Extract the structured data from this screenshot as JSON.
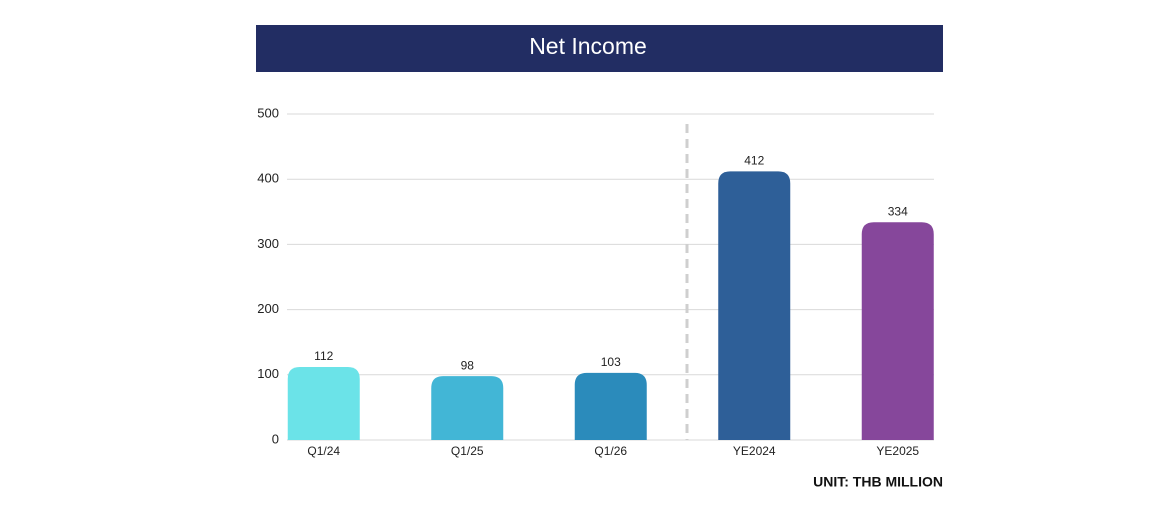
{
  "chart_data": {
    "type": "bar",
    "title": "Net Income",
    "categories": [
      "Q1/24",
      "Q1/25",
      "Q1/26",
      "YE2024",
      "YE2025"
    ],
    "values": [
      112,
      98,
      103,
      412,
      334
    ],
    "colors": [
      "#6be3e8",
      "#42b6d6",
      "#2b8bbb",
      "#2e5f98",
      "#86479b"
    ],
    "ylim": [
      0,
      500
    ],
    "yticks": [
      0,
      100,
      200,
      300,
      400,
      500
    ],
    "grid": true,
    "unit_label": "UNIT: THB MILLION"
  }
}
